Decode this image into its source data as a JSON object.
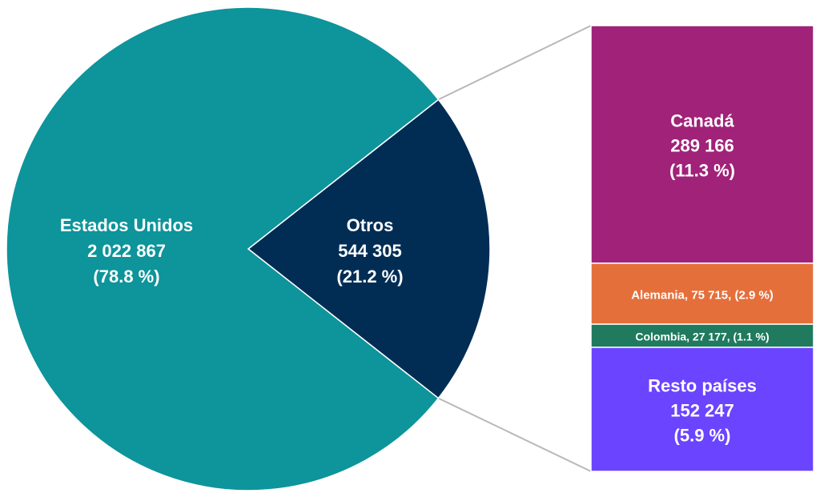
{
  "chart_data": {
    "type": "pie",
    "pie": {
      "slices": [
        {
          "name": "Estados Unidos",
          "value_text": "2 022 867",
          "pct_text": "(78.8 %)",
          "value": 2022867,
          "percent": 78.8,
          "color": "#0e949b"
        },
        {
          "name": "Otros",
          "value_text": "544 305",
          "pct_text": "(21.2 %)",
          "value": 544305,
          "percent": 21.2,
          "color": "#012d55"
        }
      ]
    },
    "breakdown": {
      "type": "stacked-bar",
      "of_slice": "Otros",
      "segments": [
        {
          "name": "Canadá",
          "value_text": "289 166",
          "pct_text": "(11.3 %)",
          "value": 289166,
          "percent": 11.3,
          "color": "#a02279"
        },
        {
          "name": "Alemania",
          "value_text": "75 715,",
          "pct_text": "(2.9 %)",
          "value": 75715,
          "percent": 2.9,
          "color": "#e56f3b"
        },
        {
          "name": "Colombia",
          "value_text": "27 177,",
          "pct_text": "(1.1 %)",
          "value": 27177,
          "percent": 1.1,
          "color": "#1f7a5e"
        },
        {
          "name": "Resto países",
          "value_text": "152 247",
          "pct_text": "(5.9 %)",
          "value": 152247,
          "percent": 5.9,
          "color": "#6a44ff"
        }
      ]
    }
  }
}
